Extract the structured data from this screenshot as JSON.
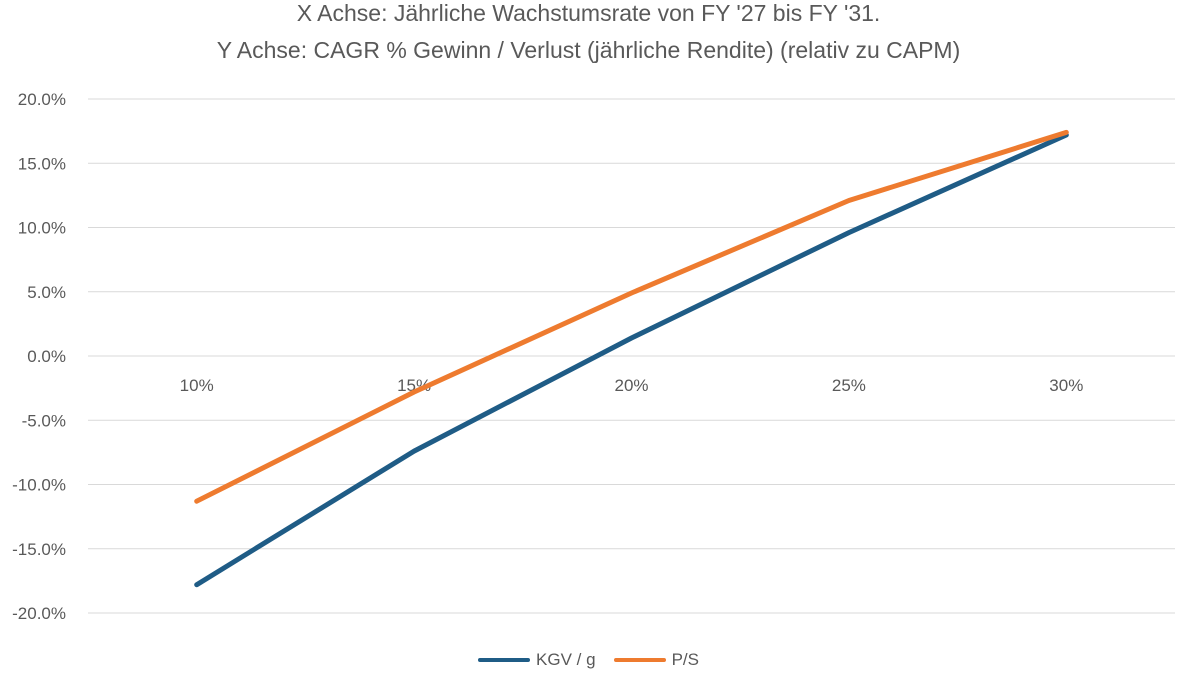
{
  "chart_data": {
    "type": "line",
    "title": "X Achse: Jährliche Wachstumsrate von FY '27 bis FY '31.",
    "subtitle": "Y Achse: CAGR % Gewinn / Verlust (jährliche Rendite) (relativ zu CAPM)",
    "xlabel": "",
    "ylabel": "",
    "categories": [
      "10%",
      "15%",
      "20%",
      "25%",
      "30%"
    ],
    "y_ticks": [
      "20.0%",
      "15.0%",
      "10.0%",
      "5.0%",
      "0.0%",
      "-5.0%",
      "-10.0%",
      "-15.0%",
      "-20.0%"
    ],
    "ylim": [
      -20,
      20
    ],
    "grid": true,
    "legend_position": "bottom",
    "series": [
      {
        "name": "KGV / g",
        "color": "#1F5C86",
        "values": [
          -17.8,
          -7.4,
          1.4,
          9.6,
          17.2
        ]
      },
      {
        "name": "P/S",
        "color": "#EE7B2F",
        "values": [
          -11.3,
          -2.8,
          4.9,
          12.1,
          17.4
        ]
      }
    ]
  }
}
